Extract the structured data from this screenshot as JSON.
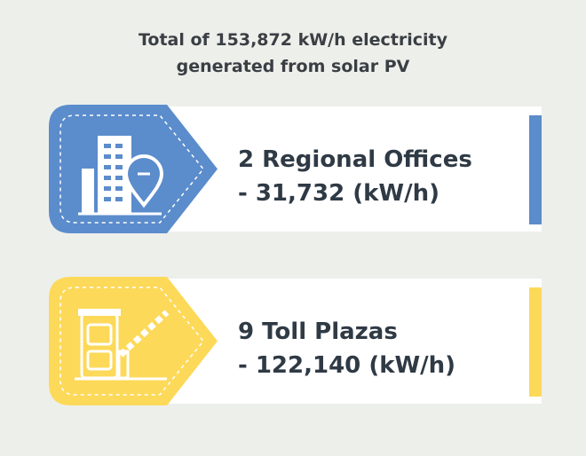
{
  "title": "Total of 153,872 kW/h electricity generated from solar PV",
  "cards": [
    {
      "label": "2 Regional Offices",
      "value": "- 31,732 (kW/h)",
      "color": "#5b8ccc"
    },
    {
      "label": "9 Toll Plazas",
      "value": "- 122,140 (kW/h)",
      "color": "#fdd95a"
    }
  ]
}
